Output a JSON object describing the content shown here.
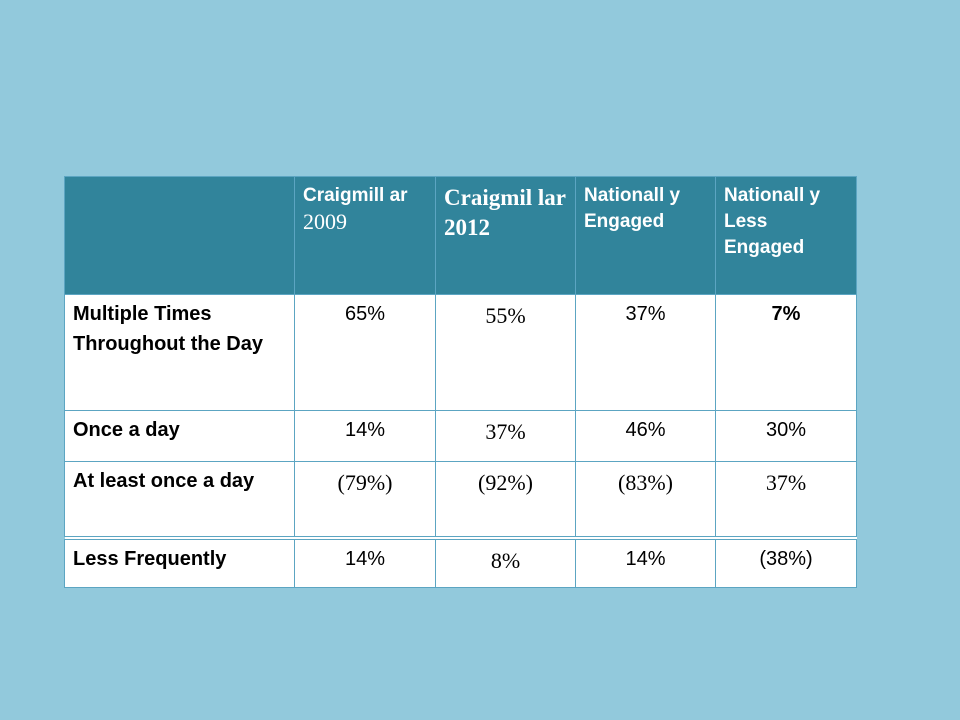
{
  "table": {
    "headers": [
      {
        "line1": "",
        "line2": ""
      },
      {
        "line1": "Craigmill ar",
        "line2": "2009"
      },
      {
        "line1": "Craigmil lar 2012",
        "line2": ""
      },
      {
        "line1": "Nationall y Engaged",
        "line2": ""
      },
      {
        "line1": "Nationall y Less Engaged",
        "line2": ""
      }
    ],
    "rows": [
      {
        "label": "Multiple Times Throughout the Day",
        "values": [
          "65%",
          "55%",
          "37%",
          "7%"
        ]
      },
      {
        "label": "Once a day",
        "values": [
          "14%",
          "37%",
          "46%",
          "30%"
        ]
      },
      {
        "label": "At least once a day",
        "values": [
          "(79%)",
          "(92%)",
          "(83%)",
          "37%"
        ]
      },
      {
        "label": "Less Frequently",
        "values": [
          "14%",
          "8%",
          "14%",
          "(38%)"
        ]
      }
    ]
  },
  "colors": {
    "background": "#92c9dc",
    "header_fill": "#31849b",
    "cell_fill": "#ffffff",
    "border": "#5ca5c2"
  }
}
